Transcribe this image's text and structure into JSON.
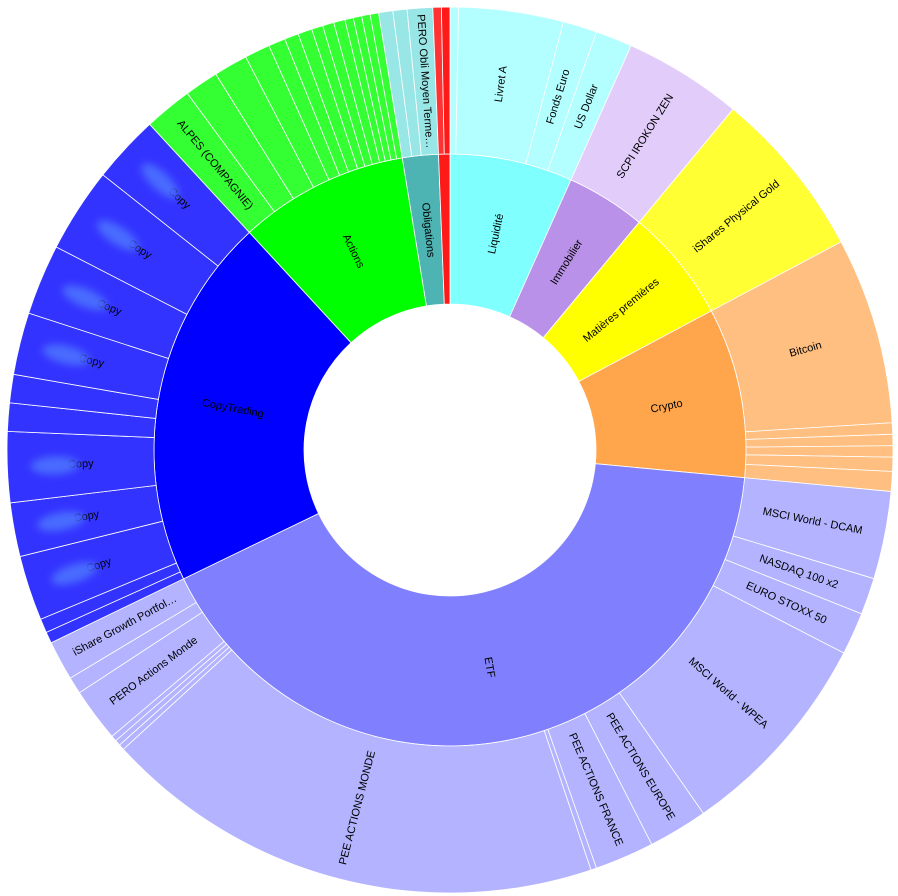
{
  "chart_data": {
    "type": "sunburst",
    "unit": "% of portfolio",
    "groups": [
      {
        "name": "Liquidité",
        "color": "#80ffff",
        "children": [
          {
            "name": "",
            "value": 0.3,
            "color": "#b3ffff"
          },
          {
            "name": "Livret A",
            "value": 3.7,
            "color": "#b3ffff"
          },
          {
            "name": "Fonds Euro",
            "value": 1.2,
            "color": "#b3ffff"
          },
          {
            "name": "US Dollar",
            "value": 1.3,
            "color": "#b3ffff"
          }
        ]
      },
      {
        "name": "Immobilier",
        "value_only": true,
        "color": "#b991e8",
        "children": [
          {
            "name": "SCPI IROKON ZEN",
            "value": 4.2,
            "color": "#e2ccfa"
          }
        ]
      },
      {
        "name": "Matières premières",
        "color": "#ffff00",
        "children": [
          {
            "name": "iShares Physical Gold",
            "value": 6.0,
            "color": "#ffff33"
          }
        ]
      },
      {
        "name": "Crypto",
        "color": "#ffa64d",
        "children": [
          {
            "name": "Bitcoin",
            "value": 6.6,
            "color": "#ffbf80"
          },
          {
            "name": "",
            "value": 0.4,
            "color": "#ffbf80"
          },
          {
            "name": "",
            "value": 0.4,
            "color": "#ffbf80"
          },
          {
            "name": "",
            "value": 0.4,
            "color": "#ffbf80"
          },
          {
            "name": "",
            "value": 0.5,
            "color": "#ffbf80"
          },
          {
            "name": "",
            "value": 0.7,
            "color": "#ffbf80"
          }
        ]
      },
      {
        "name": "ETF",
        "color": "#8080ff",
        "children": [
          {
            "name": "MSCI World - DCAM",
            "value": 3.1,
            "color": "#b3b3ff"
          },
          {
            "name": "NASDAQ 100 x2",
            "value": 1.3,
            "color": "#b3b3ff"
          },
          {
            "name": "EURO STOXX 50",
            "value": 1.5,
            "color": "#b3b3ff"
          },
          {
            "name": "MSCI World - WPEA",
            "value": 7.5,
            "color": "#b3b3ff"
          },
          {
            "name": "PEE ACTIONS EUROPE",
            "value": 2.1,
            "color": "#b3b3ff"
          },
          {
            "name": "PEE ACTIONS FRANCE",
            "value": 2.1,
            "color": "#b3b3ff"
          },
          {
            "name": "",
            "value": 0.2,
            "color": "#b3b3ff"
          },
          {
            "name": "PEE ACTIONS MONDE",
            "value": 17.8,
            "color": "#b3b3ff"
          },
          {
            "name": "",
            "value": 0.2,
            "color": "#b3b3ff"
          },
          {
            "name": "",
            "value": 0.2,
            "color": "#b3b3ff"
          },
          {
            "name": "",
            "value": 0.2,
            "color": "#b3b3ff"
          },
          {
            "name": "PERO Actions Monde",
            "value": 1.9,
            "color": "#b3b3ff"
          },
          {
            "name": "",
            "value": 0.6,
            "color": "#b3b3ff"
          },
          {
            "name": "iShare Growth Portfol…",
            "value": 1.4,
            "color": "#b3b3ff"
          }
        ]
      },
      {
        "name": "CopyTrading",
        "color": "#0000ff",
        "children": [
          {
            "name": "",
            "value": 0.4,
            "color": "#3333ff"
          },
          {
            "name": "",
            "value": 0.5,
            "color": "#3333ff"
          },
          {
            "name": "Copy",
            "value": 2.3,
            "color": "#3333ff",
            "blur": true
          },
          {
            "name": "Copy",
            "value": 1.9,
            "color": "#3333ff",
            "blur": true
          },
          {
            "name": "Copy",
            "value": 2.5,
            "color": "#3333ff",
            "blur": true
          },
          {
            "name": "",
            "value": 1.0,
            "color": "#3333ff"
          },
          {
            "name": "",
            "value": 1.0,
            "color": "#3333ff"
          },
          {
            "name": "Copy",
            "value": 2.2,
            "color": "#3333ff",
            "blur": true
          },
          {
            "name": "Copy",
            "value": 2.5,
            "color": "#3333ff",
            "blur": true
          },
          {
            "name": "Copy",
            "value": 3.0,
            "color": "#3333ff",
            "blur": true
          },
          {
            "name": "Copy",
            "value": 2.4,
            "color": "#3333ff",
            "blur": true
          }
        ]
      },
      {
        "name": "Actions",
        "color": "#00ff00",
        "children": [
          {
            "name": "ALPES (COMPAGNIE)",
            "value": 1.7,
            "color": "#33ff33"
          },
          {
            "name": "",
            "value": 1.2,
            "color": "#33ff33"
          },
          {
            "name": "",
            "value": 1.2,
            "color": "#33ff33"
          },
          {
            "name": "",
            "value": 0.9,
            "color": "#33ff33"
          },
          {
            "name": "",
            "value": 0.6,
            "color": "#33ff33"
          },
          {
            "name": "",
            "value": 0.5,
            "color": "#33ff33"
          },
          {
            "name": "",
            "value": 0.5,
            "color": "#33ff33"
          },
          {
            "name": "",
            "value": 0.4,
            "color": "#33ff33"
          },
          {
            "name": "",
            "value": 0.4,
            "color": "#33ff33"
          },
          {
            "name": "",
            "value": 0.4,
            "color": "#33ff33"
          },
          {
            "name": "",
            "value": 0.3,
            "color": "#33ff33"
          },
          {
            "name": "",
            "value": 0.3,
            "color": "#33ff33"
          },
          {
            "name": "",
            "value": 0.3,
            "color": "#33ff33"
          },
          {
            "name": "",
            "value": 0.3,
            "color": "#33ff33"
          }
        ]
      },
      {
        "name": "Obligations",
        "color": "#4db3b3",
        "children": [
          {
            "name": "",
            "value": 0.5,
            "color": "#99e6e6"
          },
          {
            "name": "",
            "value": 0.5,
            "color": "#99e6e6"
          },
          {
            "name": "PERO Obli Moyen Terme…",
            "value": 0.9,
            "color": "#99e6e6"
          }
        ]
      },
      {
        "name": "",
        "color": "#ff1a1a",
        "children": [
          {
            "name": "",
            "value": 0.3,
            "color": "#ff3333"
          },
          {
            "name": "",
            "value": 0.3,
            "color": "#ff1a1a"
          }
        ]
      }
    ]
  }
}
